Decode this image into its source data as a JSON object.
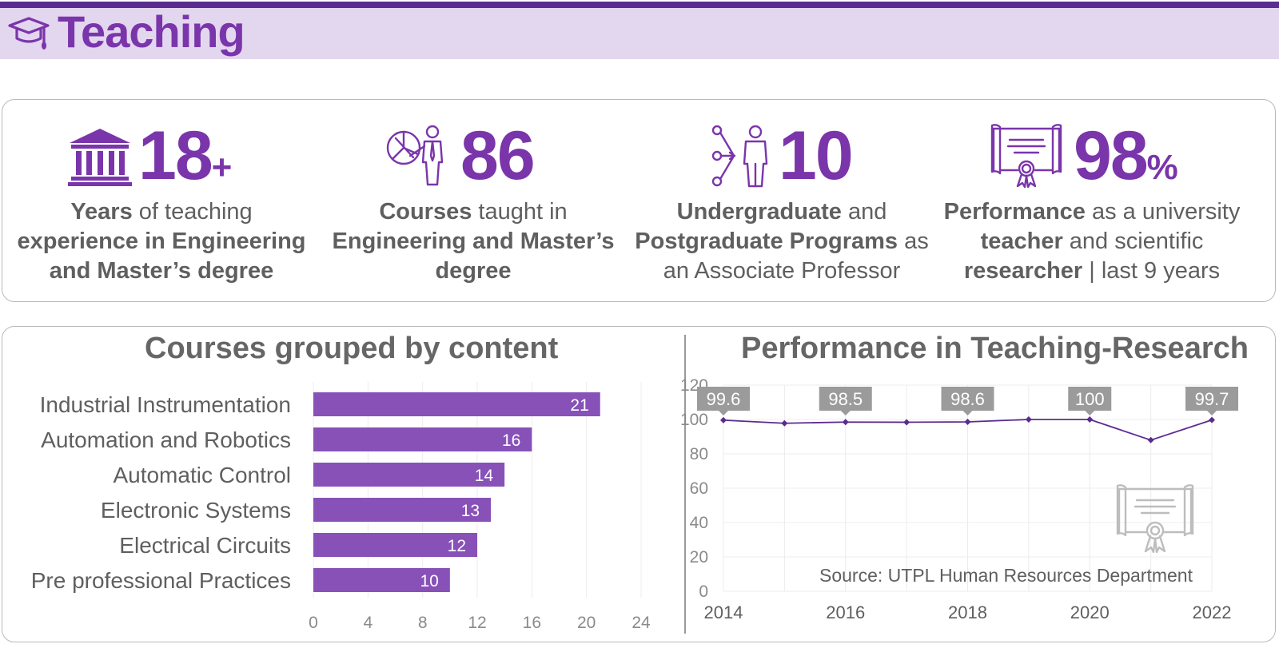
{
  "header": {
    "title": "Teaching",
    "icon": "graduation-cap-icon",
    "accent": "#7a35ab",
    "band": "#e3d6ef"
  },
  "stats": [
    {
      "icon": "university-building-icon",
      "value": "18",
      "suffix": "+",
      "line1_bold": "Years",
      "line1_rest": " of teaching",
      "line2": "experience in Engineering",
      "line3": "and Master’s degree"
    },
    {
      "icon": "presentation-chart-icon",
      "value": "86",
      "suffix": "",
      "line1_bold": "Courses",
      "line1_rest": " taught in",
      "line2": "Engineering and Master’s",
      "line3": "degree"
    },
    {
      "icon": "network-person-icon",
      "value": "10",
      "suffix": "",
      "line1_bold": "Undergraduate",
      "line1_rest": " and",
      "line2_bold": "Postgraduate Programs",
      "line2_rest": " as",
      "line3": "an Associate Professor"
    },
    {
      "icon": "certificate-icon",
      "value": "98",
      "suffix": "%",
      "line1_bold": "Performance",
      "line1_rest": " as a university",
      "line2_bold": "teacher",
      "line2_rest": " and scientific",
      "line3_bold": "researcher",
      "line3_rest": " | last 9 years"
    }
  ],
  "chart_data": [
    {
      "type": "bar",
      "orientation": "horizontal",
      "title": "Courses grouped by content",
      "categories": [
        "Industrial Instrumentation",
        "Automation and Robotics",
        "Automatic Control",
        "Electronic Systems",
        "Electrical Circuits",
        "Pre professional Practices"
      ],
      "values": [
        21,
        16,
        14,
        13,
        12,
        10
      ],
      "xlim": [
        0,
        24
      ],
      "xticks": [
        0,
        4,
        8,
        12,
        16,
        20,
        24
      ],
      "grid": true,
      "color": "#8751b8"
    },
    {
      "type": "line",
      "title": "Performance in Teaching-Research",
      "x": [
        2014,
        2015,
        2016,
        2017,
        2018,
        2019,
        2020,
        2021,
        2022
      ],
      "y": [
        99.6,
        97.8,
        98.5,
        98.4,
        98.6,
        100,
        100,
        88,
        99.7
      ],
      "labeled_points": [
        {
          "x": 2014,
          "label": "99.6"
        },
        {
          "x": 2016,
          "label": "98.5"
        },
        {
          "x": 2018,
          "label": "98.6"
        },
        {
          "x": 2020,
          "label": "100"
        },
        {
          "x": 2022,
          "label": "99.7"
        }
      ],
      "ylim": [
        0,
        120
      ],
      "yticks": [
        0,
        20,
        40,
        60,
        80,
        100,
        120
      ],
      "xticks": [
        2014,
        2016,
        2018,
        2020,
        2022
      ],
      "grid": true,
      "color": "#5b2c8f",
      "annotation": "Source: UTPL Human Resources Department",
      "watermark_icon": "certificate-icon"
    }
  ]
}
